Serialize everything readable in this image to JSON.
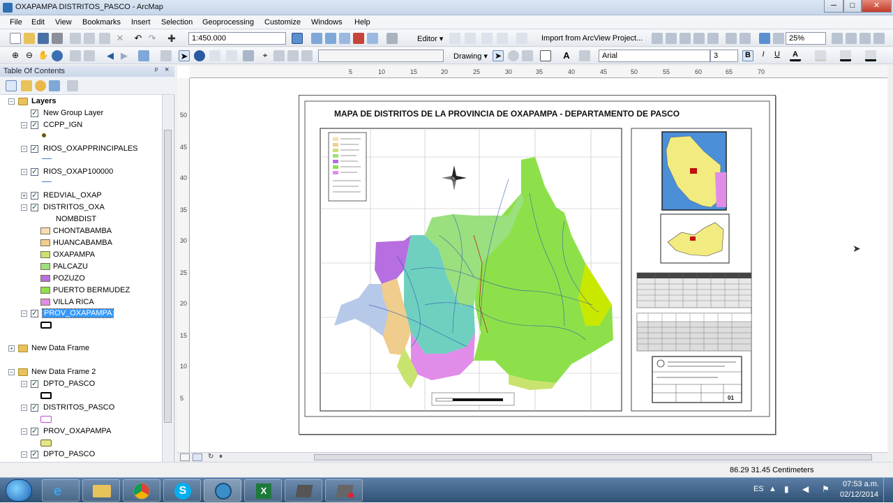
{
  "window": {
    "title": "OXAPAMPA DISTRITOS_PASCO - ArcMap",
    "minimize": "─",
    "maximize": "□",
    "close": "✕"
  },
  "menu": [
    "File",
    "Edit",
    "View",
    "Bookmarks",
    "Insert",
    "Selection",
    "Geoprocessing",
    "Customize",
    "Windows",
    "Help"
  ],
  "toolbar": {
    "scale": "1:450.000",
    "editor": "Editor ▾",
    "import": "Import from ArcView Project...",
    "zoom_level": "25%",
    "drawing": "Drawing ▾",
    "font": "Arial",
    "font_size": "3",
    "bold": "B",
    "italic": "I",
    "underline": "U",
    "text_tool": "A"
  },
  "toc": {
    "title": "Table Of Contents",
    "pin": "ᵖ",
    "close": "×",
    "layers_label": "Layers",
    "items": {
      "new_group": "New Group Layer",
      "ccpp": "CCPP_IGN",
      "rios_principales": "RIOS_OXAPPRINCIPALES",
      "rios_100000": "RIOS_OXAP100000",
      "redvial": "REDVIAL_OXAP",
      "distritos": "DISTRITOS_OXA",
      "nombdist": "NOMBDIST",
      "prov_oxapampa": "PROV_OXAPAMPA",
      "new_data_frame": "New Data Frame",
      "new_data_frame_2": "New Data Frame 2",
      "dpto_pasco": "DPTO_PASCO",
      "distritos_pasco": "DISTRITOS_PASCO",
      "prov_oxapampa_2": "PROV_OXAPAMPA",
      "dpto_pasco_2": "DPTO_PASCO"
    },
    "districts": [
      {
        "name": "CHONTABAMBA",
        "color": "#f7deb4"
      },
      {
        "name": "HUANCABAMBA",
        "color": "#f0cd8c"
      },
      {
        "name": "OXAPAMPA",
        "color": "#c9e36f"
      },
      {
        "name": "PALCAZU",
        "color": "#9be07e"
      },
      {
        "name": "POZUZO",
        "color": "#b76ee0"
      },
      {
        "name": "PUERTO BERMUDEZ",
        "color": "#8ee04a"
      },
      {
        "name": "VILLA RICA",
        "color": "#e08ce8"
      }
    ]
  },
  "map": {
    "title": "MAPA DE DISTRITOS DE LA PROVINCIA DE OXAPAMPA - DEPARTAMENTO DE PASCO",
    "ruler_h": [
      "5",
      "10",
      "15",
      "20",
      "25",
      "30",
      "35",
      "40",
      "45",
      "50",
      "55",
      "60",
      "65",
      "70"
    ],
    "ruler_v": [
      "50",
      "45",
      "40",
      "35",
      "30",
      "25",
      "20",
      "15",
      "10",
      "5"
    ],
    "sheet_number": "01"
  },
  "status": {
    "coords": "86.29  31.45 Centimeters"
  },
  "taskbar": {
    "lang": "ES",
    "time": "07:53 a.m.",
    "date": "02/12/2014"
  }
}
